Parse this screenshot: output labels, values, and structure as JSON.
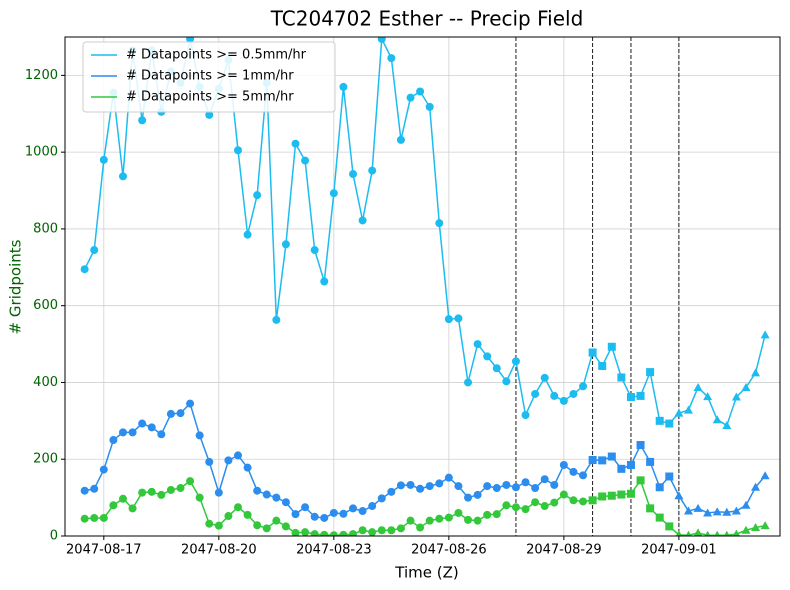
{
  "chart_data": {
    "type": "line",
    "title": "TC204702 Esther -- Precip Field",
    "xlabel": "Time (Z)",
    "ylabel": "# Gridpoints",
    "axis_label_color": "#006400",
    "x": [
      "2047-08-16 12:00",
      "2047-08-16 18:00",
      "2047-08-17 00:00",
      "2047-08-17 06:00",
      "2047-08-17 12:00",
      "2047-08-17 18:00",
      "2047-08-18 00:00",
      "2047-08-18 06:00",
      "2047-08-18 12:00",
      "2047-08-18 18:00",
      "2047-08-19 00:00",
      "2047-08-19 06:00",
      "2047-08-19 12:00",
      "2047-08-19 18:00",
      "2047-08-20 00:00",
      "2047-08-20 06:00",
      "2047-08-20 12:00",
      "2047-08-20 18:00",
      "2047-08-21 00:00",
      "2047-08-21 06:00",
      "2047-08-21 12:00",
      "2047-08-21 18:00",
      "2047-08-22 00:00",
      "2047-08-22 06:00",
      "2047-08-22 12:00",
      "2047-08-22 18:00",
      "2047-08-23 00:00",
      "2047-08-23 06:00",
      "2047-08-23 12:00",
      "2047-08-23 18:00",
      "2047-08-24 00:00",
      "2047-08-24 06:00",
      "2047-08-24 12:00",
      "2047-08-24 18:00",
      "2047-08-25 00:00",
      "2047-08-25 06:00",
      "2047-08-25 12:00",
      "2047-08-25 18:00",
      "2047-08-26 00:00",
      "2047-08-26 06:00",
      "2047-08-26 12:00",
      "2047-08-26 18:00",
      "2047-08-27 00:00",
      "2047-08-27 06:00",
      "2047-08-27 12:00",
      "2047-08-27 18:00",
      "2047-08-28 00:00",
      "2047-08-28 06:00",
      "2047-08-28 12:00",
      "2047-08-28 18:00",
      "2047-08-29 00:00",
      "2047-08-29 06:00",
      "2047-08-29 12:00",
      "2047-08-29 18:00",
      "2047-08-30 00:00",
      "2047-08-30 06:00",
      "2047-08-30 12:00",
      "2047-08-30 18:00",
      "2047-08-31 00:00",
      "2047-08-31 06:00",
      "2047-08-31 12:00",
      "2047-08-31 18:00",
      "2047-09-01 00:00",
      "2047-09-01 06:00",
      "2047-09-01 12:00",
      "2047-09-01 18:00",
      "2047-09-02 00:00",
      "2047-09-02 06:00",
      "2047-09-02 12:00",
      "2047-09-02 18:00",
      "2047-09-03 00:00",
      "2047-09-03 06:00"
    ],
    "series": [
      {
        "name": "# Datapoints >= 0.5mm/hr",
        "color": "#1cbcf0",
        "values": [
          695,
          745,
          980,
          1155,
          937,
          1265,
          1083,
          1265,
          1105,
          1210,
          1180,
          1295,
          1170,
          1097,
          1165,
          1240,
          1005,
          785,
          888,
          1180,
          563,
          760,
          1022,
          978,
          745,
          663,
          893,
          1170,
          943,
          822,
          952,
          1295,
          1245,
          1032,
          1142,
          1158,
          1118,
          815,
          565,
          567,
          400,
          500,
          468,
          437,
          403,
          455,
          315,
          370,
          412,
          365,
          352,
          370,
          390,
          478,
          443,
          493,
          413,
          362,
          365,
          427,
          300,
          293,
          320,
          328,
          387,
          363,
          303,
          288,
          362,
          387,
          425,
          524
        ]
      },
      {
        "name": "# Datapoints >= 1mm/hr",
        "color": "#2b8ded",
        "values": [
          118,
          123,
          173,
          250,
          270,
          270,
          293,
          283,
          265,
          318,
          320,
          345,
          262,
          193,
          113,
          197,
          210,
          178,
          118,
          108,
          100,
          88,
          57,
          75,
          50,
          47,
          60,
          58,
          72,
          65,
          78,
          98,
          115,
          132,
          133,
          123,
          130,
          137,
          152,
          130,
          100,
          107,
          130,
          125,
          133,
          127,
          140,
          125,
          148,
          133,
          185,
          167,
          158,
          198,
          197,
          207,
          175,
          185,
          237,
          193,
          127,
          155,
          105,
          65,
          72,
          60,
          63,
          62,
          65,
          80,
          127,
          157
        ]
      },
      {
        "name": "# Datapoints >= 5mm/hr",
        "color": "#32c83a",
        "values": [
          45,
          47,
          47,
          80,
          97,
          72,
          113,
          115,
          107,
          120,
          125,
          143,
          100,
          32,
          27,
          52,
          75,
          55,
          28,
          20,
          40,
          25,
          8,
          10,
          5,
          3,
          2,
          3,
          5,
          15,
          10,
          15,
          15,
          20,
          40,
          22,
          40,
          45,
          48,
          60,
          42,
          40,
          55,
          57,
          80,
          75,
          70,
          88,
          78,
          87,
          108,
          93,
          90,
          93,
          103,
          105,
          108,
          110,
          145,
          72,
          48,
          25,
          3,
          2,
          8,
          2,
          2,
          2,
          5,
          15,
          22,
          27
        ]
      }
    ],
    "markers": [
      "circle",
      "square",
      "triangle"
    ],
    "marker_starts": [
      "2047-08-16 12:00",
      "2047-08-29 18:00",
      "2047-09-01 00:00"
    ],
    "vlines": [
      "2047-08-27 18:00",
      "2047-08-29 18:00",
      "2047-08-30 18:00",
      "2047-09-01 00:00"
    ],
    "xlim": [
      "2047-08-15 23:42",
      "2047-09-03 15:18"
    ],
    "xticks": [
      "2047-08-17",
      "2047-08-20",
      "2047-08-23",
      "2047-08-26",
      "2047-08-29",
      "2047-09-01"
    ],
    "ylim": [
      0,
      1300
    ],
    "yticks": [
      0,
      200,
      400,
      600,
      800,
      1000,
      1200
    ],
    "grid": true,
    "legend": "upper-left"
  }
}
